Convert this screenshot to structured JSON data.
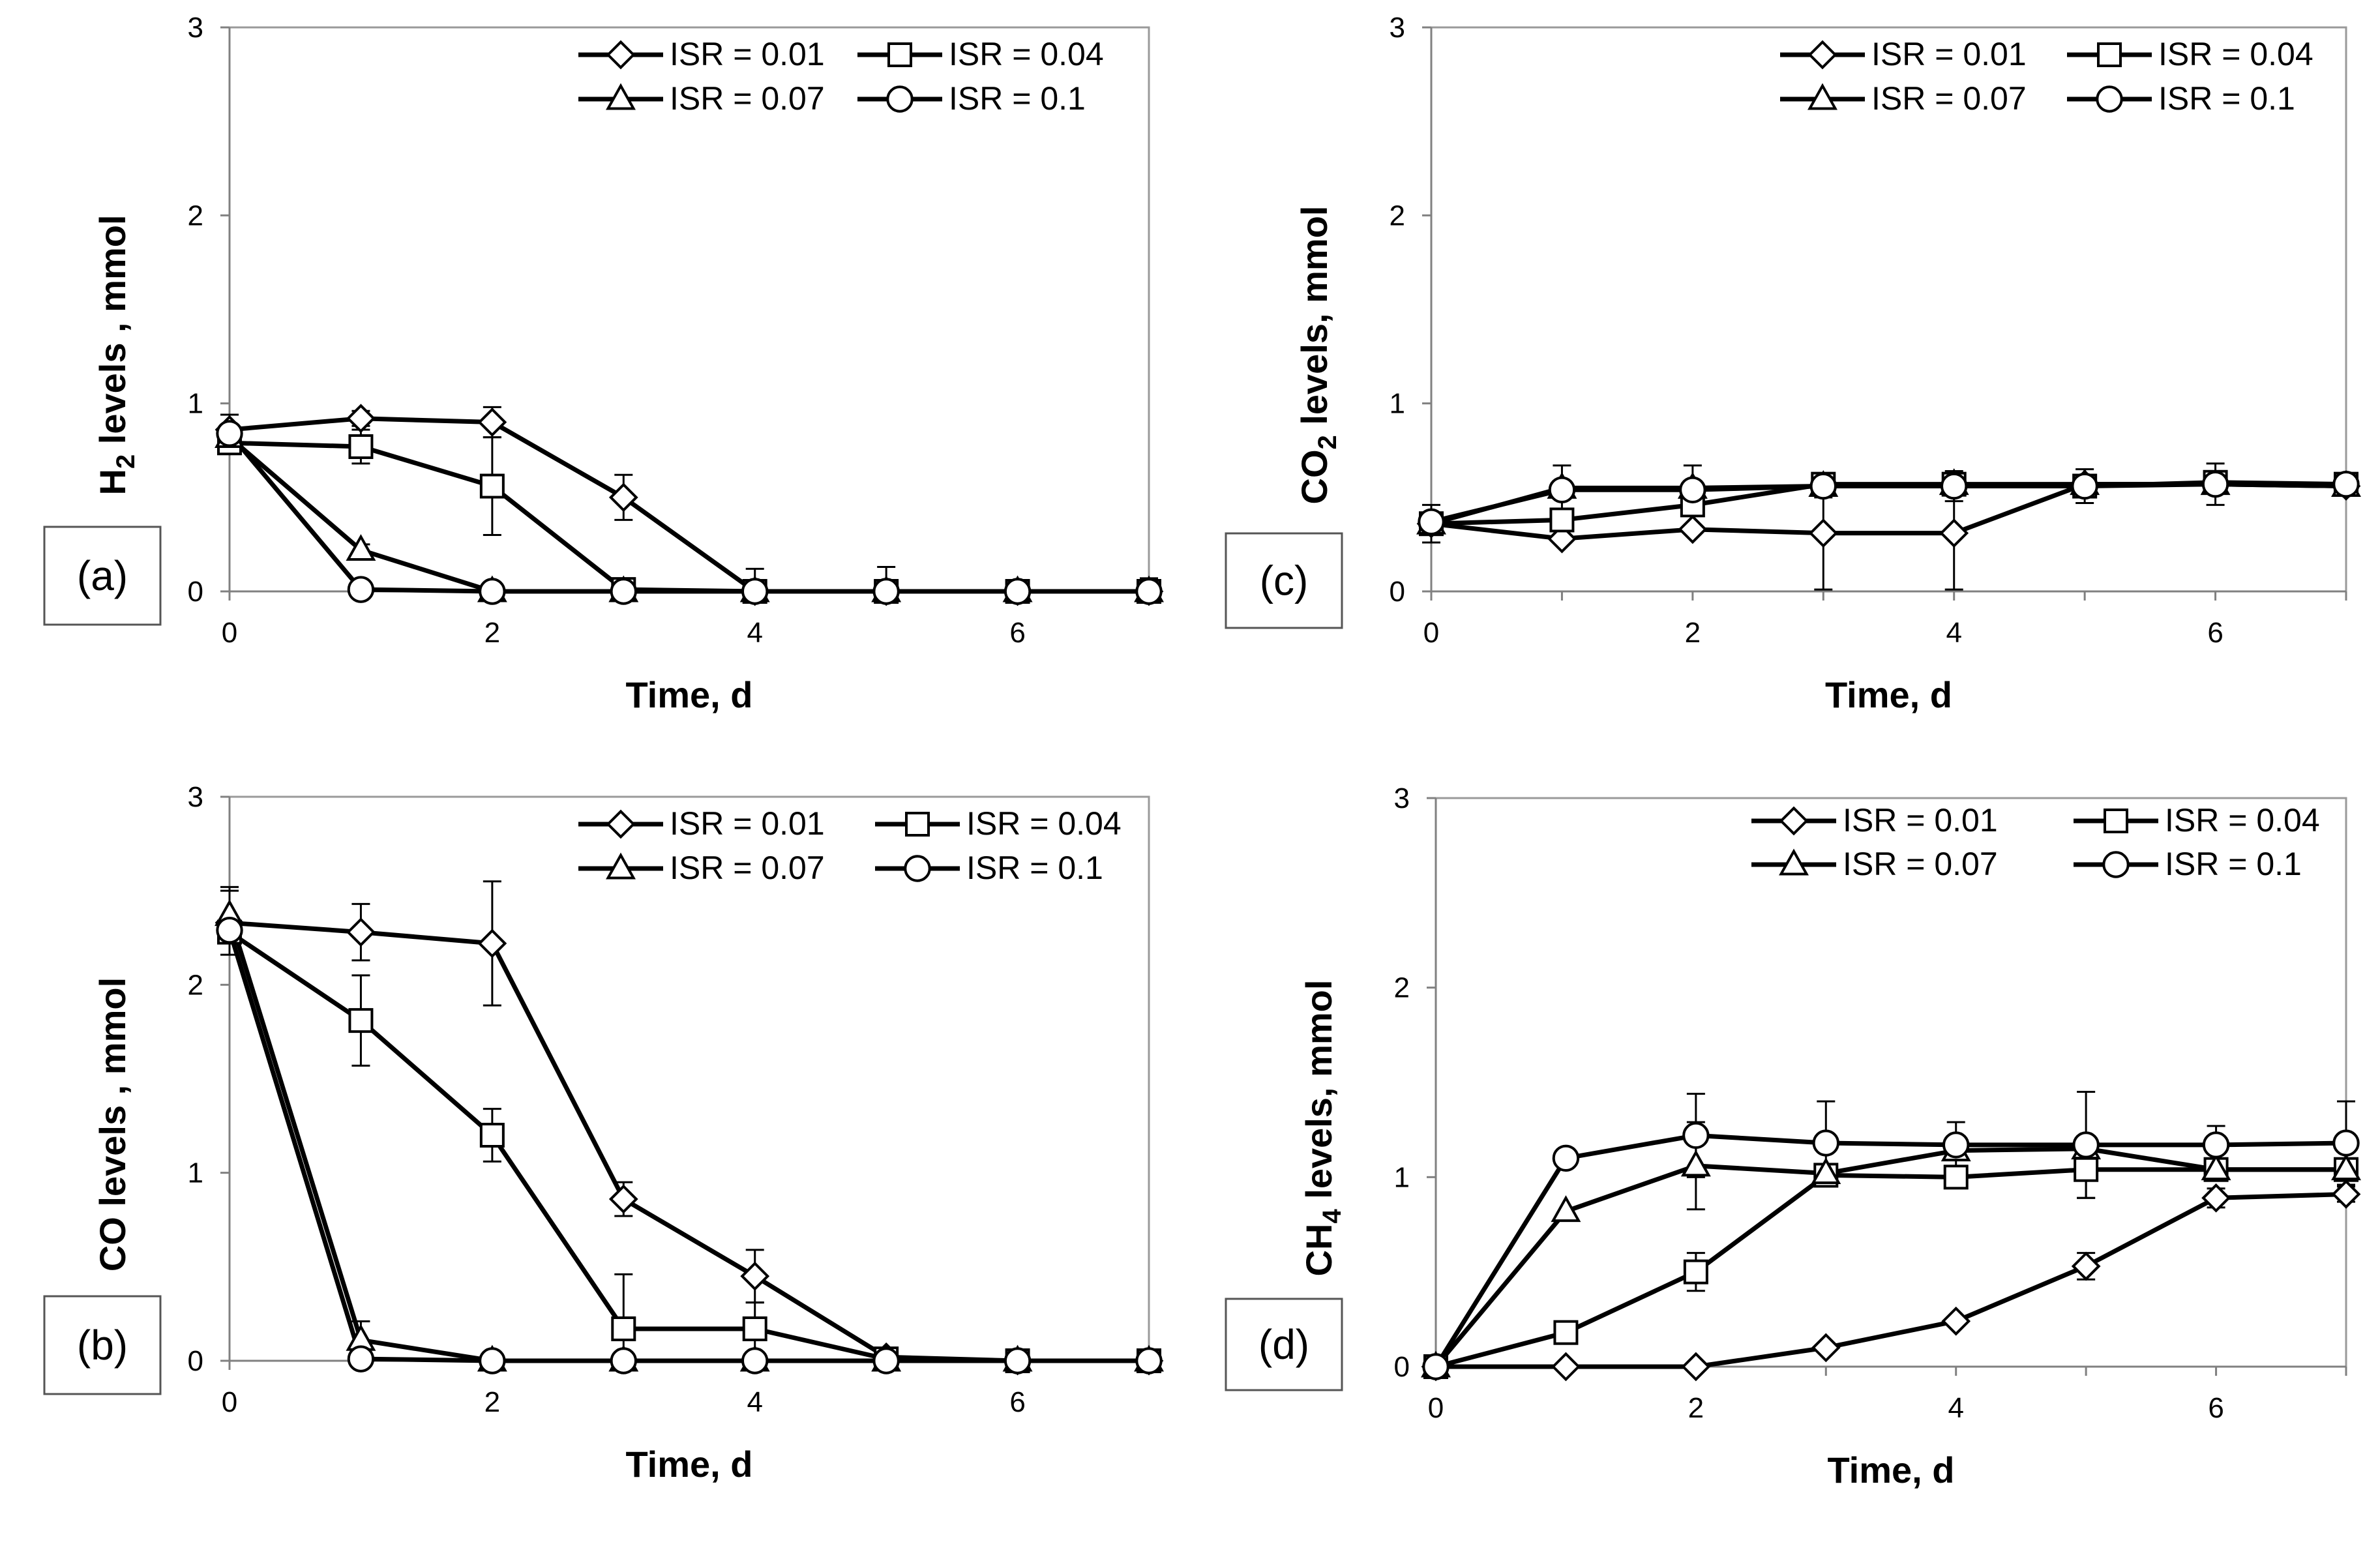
{
  "chart_data": [
    {
      "type": "line",
      "panel_label": "(a)",
      "ylabel": {
        "base": "H",
        "sub": "2",
        "rest": " levels , mmol"
      },
      "xlabel": "Time, d",
      "xlim": [
        0,
        7
      ],
      "ylim": [
        0,
        3
      ],
      "xticks": [
        "0",
        "2",
        "4",
        "6"
      ],
      "yticks": [
        "0",
        "1",
        "2",
        "3"
      ],
      "grid": false,
      "legend_position": "top-right",
      "series": [
        {
          "name": "ISR = 0.01",
          "marker": "diamond",
          "x": [
            0,
            1,
            2,
            3,
            4,
            5,
            6,
            7
          ],
          "y": [
            0.86,
            0.92,
            0.9,
            0.5,
            0.0,
            0.0,
            0.0,
            0.0
          ],
          "err": [
            0.08,
            0.04,
            0.08,
            0.12,
            0.12,
            0.13,
            0.0,
            0.07
          ]
        },
        {
          "name": "ISR =  0.04",
          "marker": "square",
          "x": [
            0,
            1,
            2,
            3,
            4,
            5,
            6,
            7
          ],
          "y": [
            0.79,
            0.77,
            0.56,
            0.01,
            0.0,
            0.0,
            0.0,
            0.0
          ],
          "err": [
            0.03,
            0.09,
            0.26,
            0.03,
            0.0,
            0.0,
            0.0,
            0.0
          ]
        },
        {
          "name": "ISR =  0.07",
          "marker": "triangle",
          "x": [
            0,
            1,
            2,
            3,
            4,
            5,
            6,
            7
          ],
          "y": [
            0.82,
            0.22,
            0.0,
            0.0,
            0.0,
            0.0,
            0.0,
            0.0
          ],
          "err": [
            0.0,
            0.03,
            0.0,
            0.0,
            0.0,
            0.0,
            0.0,
            0.0
          ]
        },
        {
          "name": "ISR =  0.1",
          "marker": "circle",
          "x": [
            0,
            1,
            2,
            3,
            4,
            5,
            6,
            7
          ],
          "y": [
            0.84,
            0.01,
            0.0,
            0.0,
            0.0,
            0.0,
            0.0,
            0.0
          ],
          "err": [
            0.0,
            0.0,
            0.0,
            0.0,
            0.0,
            0.0,
            0.0,
            0.0
          ]
        }
      ]
    },
    {
      "type": "line",
      "panel_label": "(b)",
      "ylabel": {
        "base": "CO levels , mmol",
        "sub": "",
        "rest": ""
      },
      "xlabel": "Time, d",
      "xlim": [
        0,
        7
      ],
      "ylim": [
        0,
        3
      ],
      "xticks": [
        "0",
        "2",
        "4",
        "6"
      ],
      "yticks": [
        "0",
        "1",
        "2",
        "3"
      ],
      "grid": false,
      "legend_position": "top-right",
      "series": [
        {
          "name": "ISR = 0.01",
          "marker": "diamond",
          "x": [
            0,
            1,
            2,
            3,
            4,
            5,
            6,
            7
          ],
          "y": [
            2.33,
            2.28,
            2.22,
            0.86,
            0.45,
            0.02,
            0.0,
            0.0
          ],
          "err": [
            0.17,
            0.15,
            0.33,
            0.09,
            0.14,
            0.0,
            0.0,
            0.0
          ]
        },
        {
          "name": "ISR =  0.04",
          "marker": "square",
          "x": [
            0,
            1,
            2,
            3,
            4,
            5,
            6,
            7
          ],
          "y": [
            2.28,
            1.81,
            1.2,
            0.17,
            0.17,
            0.01,
            0.0,
            0.0
          ],
          "err": [
            0.0,
            0.24,
            0.14,
            0.29,
            0.14,
            0.0,
            0.0,
            0.0
          ]
        },
        {
          "name": "ISR =  0.07",
          "marker": "triangle",
          "x": [
            0,
            1,
            2,
            3,
            4,
            5,
            6,
            7
          ],
          "y": [
            2.37,
            0.11,
            0.0,
            0.0,
            0.0,
            0.0,
            0.0,
            0.0
          ],
          "err": [
            0.15,
            0.1,
            0.0,
            0.0,
            0.0,
            0.0,
            0.0,
            0.0
          ]
        },
        {
          "name": "ISR =  0.1",
          "marker": "circle",
          "x": [
            0,
            1,
            2,
            3,
            4,
            5,
            6,
            7
          ],
          "y": [
            2.29,
            0.01,
            0.0,
            0.0,
            0.0,
            0.0,
            0.0,
            0.0
          ],
          "err": [
            0.0,
            0.0,
            0.0,
            0.0,
            0.0,
            0.0,
            0.0,
            0.0
          ]
        }
      ]
    },
    {
      "type": "line",
      "panel_label": "(c)",
      "ylabel": {
        "base": "CO",
        "sub": "2",
        "rest": " levels, mmol"
      },
      "xlabel": "Time, d",
      "xlim": [
        0,
        7
      ],
      "ylim": [
        0,
        3
      ],
      "xticks": [
        "0",
        "2",
        "4",
        "6"
      ],
      "yticks": [
        "0",
        "1",
        "2",
        "3"
      ],
      "grid": false,
      "legend_position": "top-right",
      "series": [
        {
          "name": "ISR = 0.01",
          "marker": "diamond",
          "x": [
            0,
            1,
            2,
            3,
            4,
            5,
            6,
            7
          ],
          "y": [
            0.36,
            0.28,
            0.33,
            0.31,
            0.31,
            0.57,
            0.57,
            0.56
          ],
          "err": [
            0.1,
            0.0,
            0.0,
            0.3,
            0.3,
            0.0,
            0.0,
            0.0
          ]
        },
        {
          "name": "ISR =  0.04",
          "marker": "square",
          "x": [
            0,
            1,
            2,
            3,
            4,
            5,
            6,
            7
          ],
          "y": [
            0.36,
            0.38,
            0.46,
            0.57,
            0.57,
            0.56,
            0.58,
            0.57
          ],
          "err": [
            0.0,
            0.0,
            0.0,
            0.0,
            0.0,
            0.0,
            0.0,
            0.0
          ]
        },
        {
          "name": "ISR =  0.07",
          "marker": "triangle",
          "x": [
            0,
            1,
            2,
            3,
            4,
            5,
            6,
            7
          ],
          "y": [
            0.36,
            0.55,
            0.55,
            0.56,
            0.57,
            0.57,
            0.57,
            0.56
          ],
          "err": [
            0.0,
            0.0,
            0.0,
            0.0,
            0.0,
            0.0,
            0.0,
            0.0
          ]
        },
        {
          "name": "ISR =  0.1",
          "marker": "circle",
          "x": [
            0,
            1,
            2,
            3,
            4,
            5,
            6,
            7
          ],
          "y": [
            0.37,
            0.54,
            0.54,
            0.56,
            0.56,
            0.56,
            0.57,
            0.57
          ],
          "err": [
            0.0,
            0.13,
            0.13,
            0.06,
            0.08,
            0.09,
            0.11,
            0.05
          ]
        }
      ]
    },
    {
      "type": "line",
      "panel_label": "(d)",
      "ylabel": {
        "base": "CH",
        "sub": "4",
        "rest": " levels, mmol"
      },
      "xlabel": "Time, d",
      "xlim": [
        0,
        7
      ],
      "ylim": [
        0,
        3
      ],
      "xticks": [
        "0",
        "2",
        "4",
        "6"
      ],
      "yticks": [
        "0",
        "1",
        "2",
        "3"
      ],
      "grid": false,
      "legend_position": "top-right",
      "series": [
        {
          "name": "ISR = 0.01",
          "marker": "diamond",
          "x": [
            0,
            1,
            2,
            3,
            4,
            5,
            6,
            7
          ],
          "y": [
            0.0,
            0.0,
            0.0,
            0.1,
            0.24,
            0.53,
            0.89,
            0.91
          ],
          "err": [
            0.0,
            0.0,
            0.0,
            0.0,
            0.0,
            0.07,
            0.05,
            0.04
          ]
        },
        {
          "name": "ISR =  0.04",
          "marker": "square",
          "x": [
            0,
            1,
            2,
            3,
            4,
            5,
            6,
            7
          ],
          "y": [
            0.0,
            0.18,
            0.5,
            1.01,
            1.0,
            1.04,
            1.04,
            1.04
          ],
          "err": [
            0.0,
            0.0,
            0.1,
            0.05,
            0.05,
            0.15,
            0.05,
            0.05
          ]
        },
        {
          "name": "ISR =  0.07",
          "marker": "triangle",
          "x": [
            0,
            1,
            2,
            3,
            4,
            5,
            6,
            7
          ],
          "y": [
            0.0,
            0.82,
            1.06,
            1.02,
            1.14,
            1.15,
            1.04,
            1.04
          ],
          "err": [
            0.0,
            0.0,
            0.23,
            0.0,
            0.0,
            0.0,
            0.0,
            0.0
          ]
        },
        {
          "name": "ISR =  0.1",
          "marker": "circle",
          "x": [
            0,
            1,
            2,
            3,
            4,
            5,
            6,
            7
          ],
          "y": [
            0.0,
            1.1,
            1.22,
            1.18,
            1.17,
            1.17,
            1.17,
            1.18
          ],
          "err": [
            0.0,
            0.0,
            0.22,
            0.22,
            0.12,
            0.28,
            0.1,
            0.22
          ]
        }
      ]
    }
  ]
}
